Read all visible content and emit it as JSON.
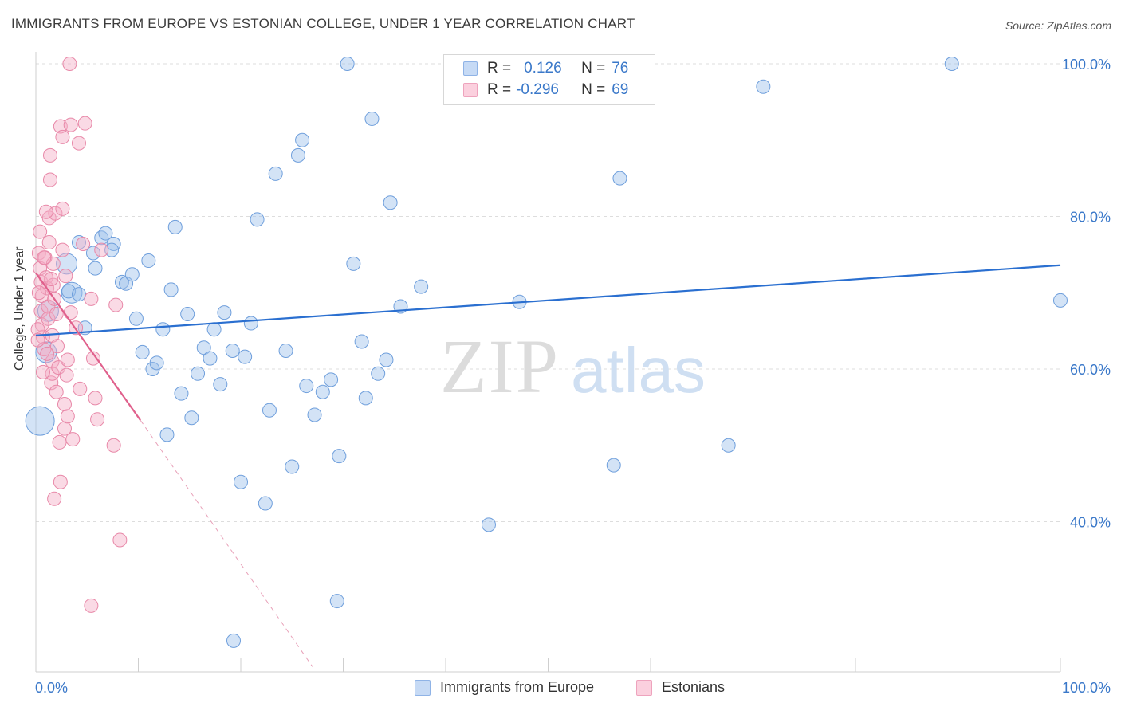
{
  "title": "IMMIGRANTS FROM EUROPE VS ESTONIAN COLLEGE, UNDER 1 YEAR CORRELATION CHART",
  "source": "Source: ZipAtlas.com",
  "watermark": {
    "zip": "ZIP",
    "atlas": "atlas"
  },
  "legend": {
    "r_label": "R =",
    "n_label": "N =",
    "rows": [
      {
        "r": "0.126",
        "n": "76",
        "color": "#9ec1ec"
      },
      {
        "r": "-0.296",
        "n": "69",
        "color": "#f5adc5"
      }
    ]
  },
  "bottom_legend": [
    "Immigrants from Europe",
    "Estonians"
  ],
  "chart_data": {
    "type": "scatter",
    "title": "IMMIGRANTS FROM EUROPE VS ESTONIAN COLLEGE, UNDER 1 YEAR CORRELATION CHART",
    "xlabel": "",
    "ylabel": "College, Under 1 year",
    "xlim": [
      0,
      100
    ],
    "ylim": [
      20,
      104
    ],
    "x_tick_labels": [
      "0.0%",
      "100.0%"
    ],
    "y_ticks": [
      40,
      60,
      80,
      100
    ],
    "y_tick_labels": [
      "40.0%",
      "60.0%",
      "80.0%",
      "100.0%"
    ],
    "grid": true,
    "legend_position": "top-center",
    "series": [
      {
        "name": "Immigrants from Europe",
        "color": "#9ec1ec",
        "stroke": "#6f9fdc",
        "r": 0.126,
        "n": 76,
        "trend": {
          "x0": 0,
          "y0": 64.4,
          "x1": 100,
          "y1": 73.6,
          "color": "#2a6fd0"
        },
        "points": [
          [
            0.4,
            53.2,
            3
          ],
          [
            1.0,
            62.2,
            2
          ],
          [
            1.2,
            67.6,
            2
          ],
          [
            3.5,
            70.0,
            2
          ],
          [
            3.0,
            73.8,
            2
          ],
          [
            3.2,
            70.2,
            1
          ],
          [
            4.2,
            69.8,
            1
          ],
          [
            4.8,
            65.4,
            1
          ],
          [
            4.2,
            76.6,
            1
          ],
          [
            5.6,
            75.2,
            1
          ],
          [
            5.8,
            73.2,
            1
          ],
          [
            6.4,
            77.2,
            1
          ],
          [
            6.8,
            77.8,
            1
          ],
          [
            7.6,
            76.4,
            1
          ],
          [
            7.4,
            75.6,
            1
          ],
          [
            8.4,
            71.4,
            1
          ],
          [
            8.8,
            71.2,
            1
          ],
          [
            9.4,
            72.4,
            1
          ],
          [
            9.8,
            66.6,
            1
          ],
          [
            10.4,
            62.2,
            1
          ],
          [
            11.0,
            74.2,
            1
          ],
          [
            11.4,
            60.0,
            1
          ],
          [
            11.8,
            60.8,
            1
          ],
          [
            12.4,
            65.2,
            1
          ],
          [
            12.8,
            51.4,
            1
          ],
          [
            13.2,
            70.4,
            1
          ],
          [
            13.6,
            78.6,
            1
          ],
          [
            14.2,
            56.8,
            1
          ],
          [
            14.8,
            67.2,
            1
          ],
          [
            15.2,
            53.6,
            1
          ],
          [
            15.8,
            59.4,
            1
          ],
          [
            16.4,
            62.8,
            1
          ],
          [
            17.0,
            61.4,
            1
          ],
          [
            17.4,
            65.2,
            1
          ],
          [
            18.0,
            58.0,
            1
          ],
          [
            18.4,
            67.4,
            1
          ],
          [
            19.2,
            62.4,
            1
          ],
          [
            20.0,
            45.2,
            1
          ],
          [
            20.4,
            61.6,
            1
          ],
          [
            21.0,
            66.0,
            1
          ],
          [
            21.6,
            79.6,
            1
          ],
          [
            22.4,
            42.4,
            1
          ],
          [
            22.8,
            54.6,
            1
          ],
          [
            23.4,
            85.6,
            1
          ],
          [
            24.4,
            62.4,
            1
          ],
          [
            25.0,
            47.2,
            1
          ],
          [
            25.6,
            88.0,
            1
          ],
          [
            26.0,
            90.0,
            1
          ],
          [
            26.4,
            57.8,
            1
          ],
          [
            27.2,
            54.0,
            1
          ],
          [
            28.0,
            57.0,
            1
          ],
          [
            28.8,
            58.6,
            1
          ],
          [
            29.4,
            29.6,
            1
          ],
          [
            29.6,
            48.6,
            1
          ],
          [
            30.4,
            100.0,
            1
          ],
          [
            31.0,
            73.8,
            1
          ],
          [
            31.8,
            63.6,
            1
          ],
          [
            32.2,
            56.2,
            1
          ],
          [
            32.8,
            92.8,
            1
          ],
          [
            33.4,
            59.4,
            1
          ],
          [
            34.2,
            61.2,
            1
          ],
          [
            34.6,
            81.8,
            1
          ],
          [
            35.6,
            68.2,
            1
          ],
          [
            37.6,
            70.8,
            1
          ],
          [
            44.2,
            39.6,
            1
          ],
          [
            47.2,
            68.8,
            1
          ],
          [
            56.4,
            47.4,
            1
          ],
          [
            57.0,
            85.0,
            1
          ],
          [
            67.6,
            50.0,
            1
          ],
          [
            71.0,
            97.0,
            1
          ],
          [
            89.4,
            100.0,
            1
          ],
          [
            100.0,
            69.0,
            1
          ],
          [
            19.3,
            24.4,
            1
          ]
        ]
      },
      {
        "name": "Estonians",
        "color": "#f5adc5",
        "stroke": "#e888a8",
        "r": -0.296,
        "n": 69,
        "trend": {
          "x0": 0,
          "y0": 72.6,
          "x1": 10.2,
          "y1": 53.3,
          "dash_x1": 27.0,
          "dash_y1": 21.0,
          "color": "#e0608c"
        },
        "points": [
          [
            0.3,
            75.2,
            1
          ],
          [
            0.4,
            73.2,
            1
          ],
          [
            0.5,
            71.4,
            1
          ],
          [
            0.6,
            69.6,
            1
          ],
          [
            0.5,
            67.6,
            1
          ],
          [
            0.6,
            65.8,
            1
          ],
          [
            0.7,
            64.2,
            1
          ],
          [
            0.8,
            62.6,
            1
          ],
          [
            0.9,
            74.6,
            1
          ],
          [
            1.0,
            72.0,
            1
          ],
          [
            1.1,
            70.6,
            1
          ],
          [
            1.2,
            68.2,
            1
          ],
          [
            1.2,
            66.6,
            1
          ],
          [
            1.3,
            76.6,
            1
          ],
          [
            1.3,
            79.8,
            1
          ],
          [
            1.4,
            84.8,
            1
          ],
          [
            1.4,
            88.0,
            1
          ],
          [
            1.5,
            58.2,
            1
          ],
          [
            1.6,
            61.0,
            1
          ],
          [
            1.6,
            59.4,
            1
          ],
          [
            1.6,
            64.4,
            1
          ],
          [
            1.7,
            71.0,
            1
          ],
          [
            1.7,
            73.8,
            1
          ],
          [
            1.8,
            69.2,
            1
          ],
          [
            1.8,
            43.0,
            1
          ],
          [
            1.9,
            80.4,
            1
          ],
          [
            2.1,
            63.0,
            1
          ],
          [
            2.0,
            67.2,
            1
          ],
          [
            2.2,
            60.2,
            1
          ],
          [
            2.3,
            50.4,
            1
          ],
          [
            2.4,
            91.8,
            1
          ],
          [
            2.4,
            45.2,
            1
          ],
          [
            2.6,
            81.0,
            1
          ],
          [
            2.6,
            75.6,
            1
          ],
          [
            2.6,
            90.4,
            1
          ],
          [
            2.8,
            55.4,
            1
          ],
          [
            2.8,
            52.2,
            1
          ],
          [
            2.9,
            72.2,
            1
          ],
          [
            3.0,
            59.2,
            1
          ],
          [
            3.1,
            53.8,
            1
          ],
          [
            3.1,
            61.2,
            1
          ],
          [
            3.4,
            67.4,
            1
          ],
          [
            3.3,
            100.0,
            1
          ],
          [
            3.4,
            92.0,
            1
          ],
          [
            3.6,
            50.8,
            1
          ],
          [
            3.9,
            65.4,
            1
          ],
          [
            4.2,
            89.6,
            1
          ],
          [
            4.3,
            57.4,
            1
          ],
          [
            4.6,
            76.4,
            1
          ],
          [
            4.8,
            92.2,
            1
          ],
          [
            5.4,
            69.2,
            1
          ],
          [
            5.4,
            29.0,
            1
          ],
          [
            5.6,
            61.4,
            1
          ],
          [
            5.8,
            56.2,
            1
          ],
          [
            6.0,
            53.4,
            1
          ],
          [
            6.4,
            75.6,
            1
          ],
          [
            7.6,
            50.0,
            1
          ],
          [
            7.8,
            68.4,
            1
          ],
          [
            8.2,
            37.6,
            1
          ],
          [
            0.2,
            65.2,
            1
          ],
          [
            0.4,
            78.0,
            1
          ],
          [
            0.3,
            70.0,
            1
          ],
          [
            0.2,
            63.8,
            1
          ],
          [
            0.8,
            74.6,
            1
          ],
          [
            1.0,
            80.6,
            1
          ],
          [
            1.5,
            71.8,
            1
          ],
          [
            2.0,
            57.0,
            1
          ],
          [
            0.7,
            59.6,
            1
          ],
          [
            1.1,
            62.0,
            1
          ]
        ]
      }
    ]
  }
}
